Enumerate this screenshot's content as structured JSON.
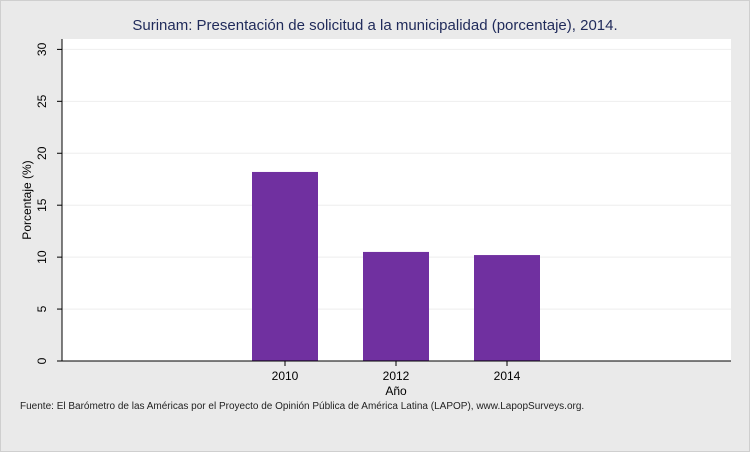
{
  "chart_data": {
    "type": "bar",
    "title": "Surinam: Presentación de solicitud a la municipalidad (porcentaje), 2014.",
    "xlabel": "Año",
    "ylabel": "Porcentaje (%)",
    "categories": [
      "2010",
      "2012",
      "2014"
    ],
    "values": [
      18.2,
      10.5,
      10.2
    ],
    "ylim": [
      0,
      31
    ],
    "yticks": [
      0,
      5,
      10,
      15,
      20,
      25,
      30
    ],
    "grid": true,
    "bar_color": "#7030a0"
  },
  "source_note": "Fuente: El Barómetro de las Américas por el Proyecto de Opinión Pública de América Latina (LAPOP), www.LapopSurveys.org."
}
